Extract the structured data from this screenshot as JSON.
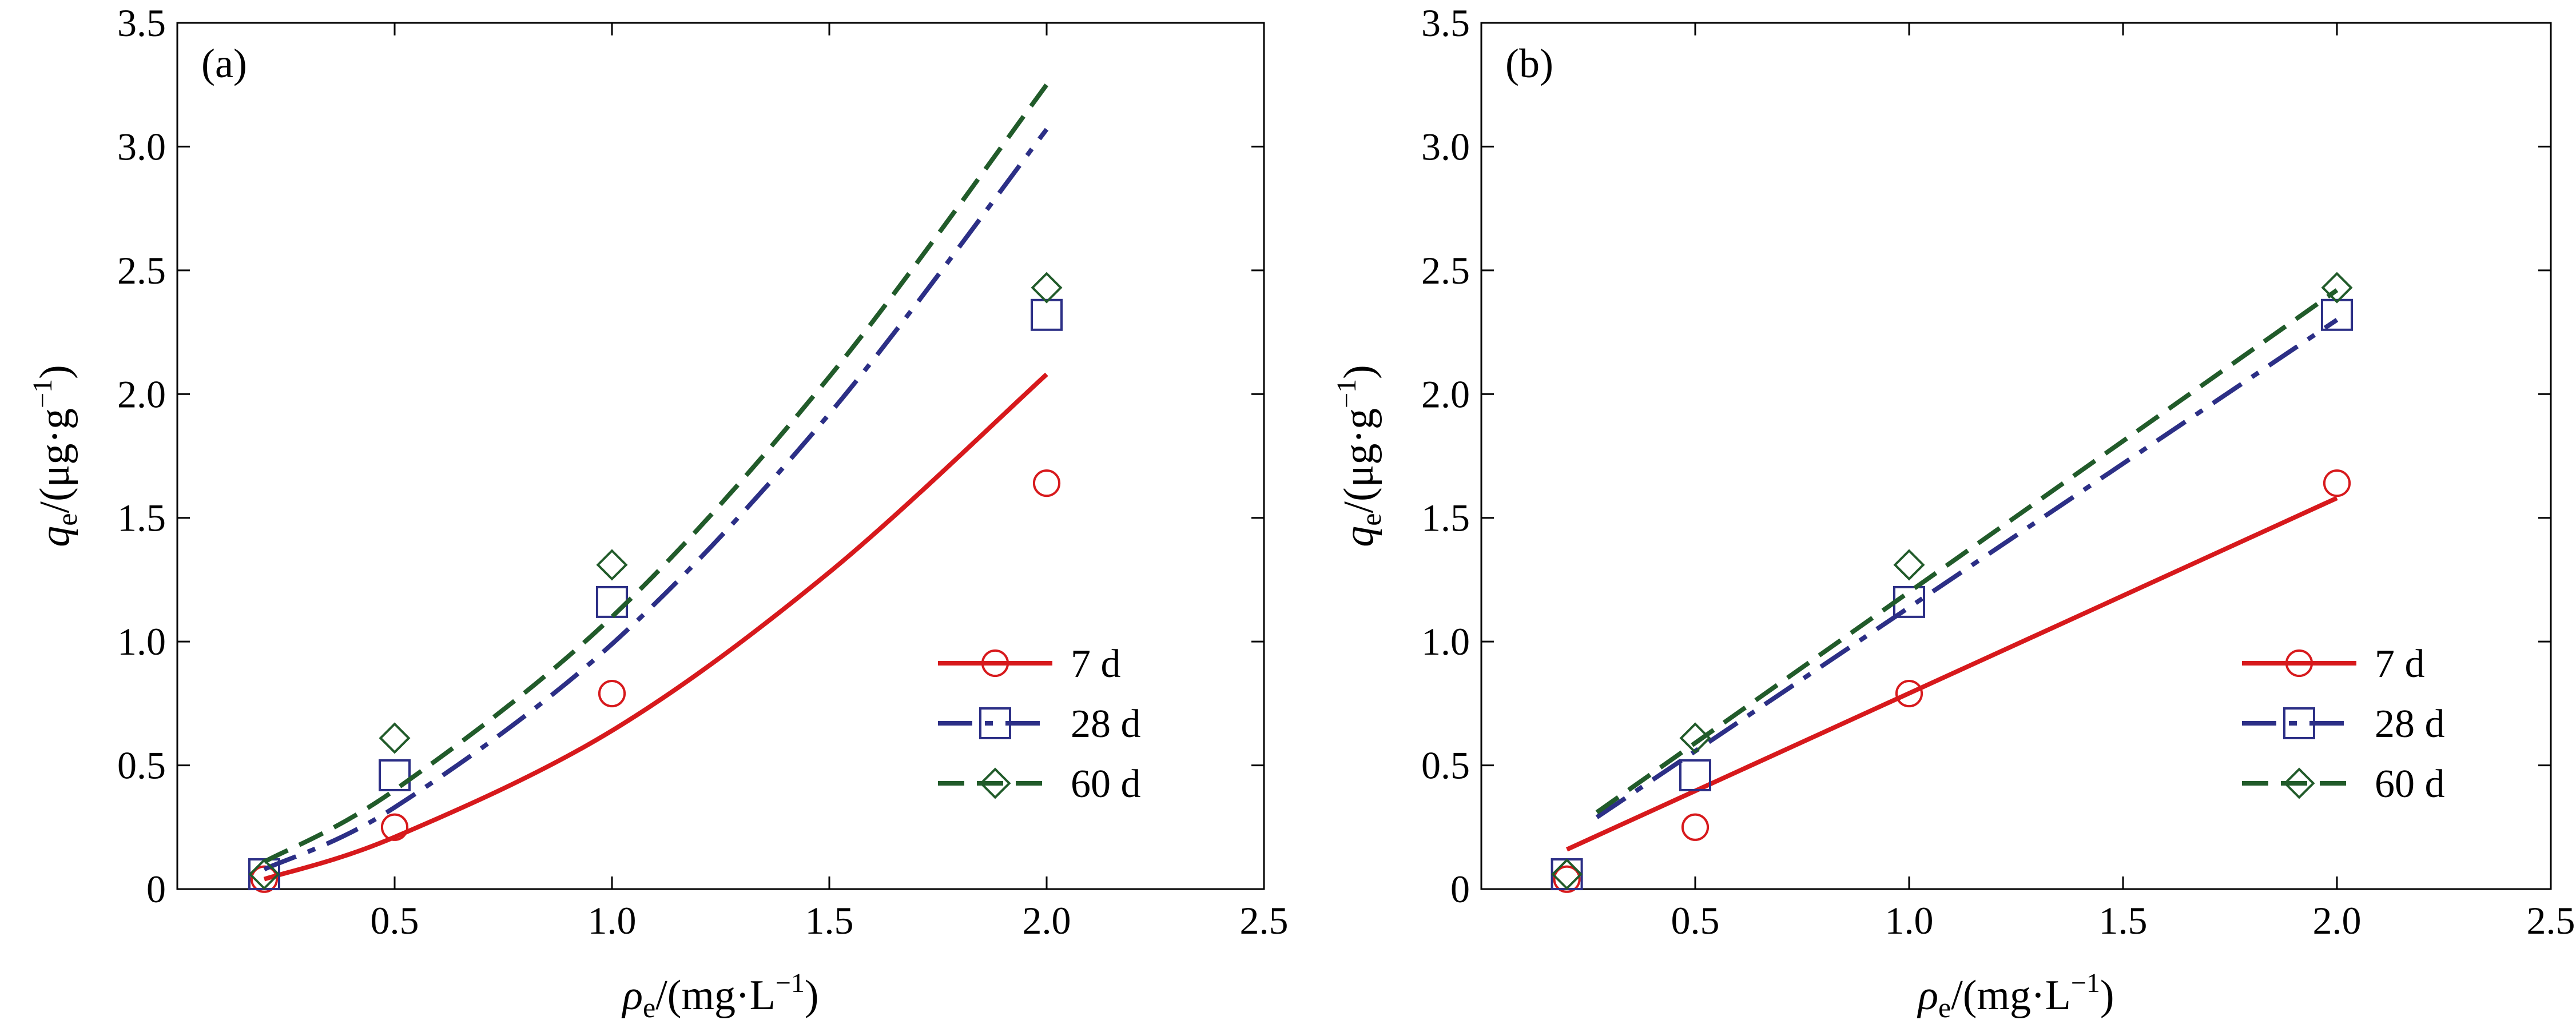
{
  "colors": {
    "s7": "#d7191c",
    "s28": "#2c2f86",
    "s60": "#215b2a",
    "axis": "#000000"
  },
  "chart_data": [
    {
      "type": "scatter",
      "panel_label": "(a)",
      "xlabel_main": "ρ",
      "xlabel_sub": "e",
      "xlabel_unit": "/(mg·L",
      "xlabel_exp": "−1",
      "xlabel_close": ")",
      "ylabel_main": "q",
      "ylabel_sub": "e",
      "ylabel_unit": "/(μg·g",
      "ylabel_exp": "−1",
      "ylabel_close": ")",
      "xlim": [
        0,
        2.5
      ],
      "ylim": [
        0,
        3.5
      ],
      "xticks": [
        "0.5",
        "1.0",
        "1.5",
        "2.0",
        "2.5"
      ],
      "yticks": [
        "0",
        "0.5",
        "1.0",
        "1.5",
        "2.0",
        "2.5",
        "3.0",
        "3.5"
      ],
      "series": [
        {
          "name": "7 d",
          "color_key": "s7",
          "marker": "circle",
          "line": "solid",
          "x": [
            0.2,
            0.5,
            1.0,
            2.0
          ],
          "y": [
            0.04,
            0.25,
            0.79,
            1.64
          ],
          "fit_x": [
            0.2,
            0.5,
            1.0,
            1.5,
            2.0
          ],
          "fit_y": [
            0.04,
            0.21,
            0.64,
            1.28,
            2.08
          ]
        },
        {
          "name": "28 d",
          "color_key": "s28",
          "marker": "square",
          "line": "dashdot",
          "x": [
            0.2,
            0.5,
            1.0,
            2.0
          ],
          "y": [
            0.06,
            0.46,
            1.16,
            2.32
          ],
          "fit_x": [
            0.2,
            0.5,
            1.0,
            1.5,
            2.0
          ],
          "fit_y": [
            0.08,
            0.33,
            0.99,
            1.92,
            3.07
          ]
        },
        {
          "name": "60 d",
          "color_key": "s60",
          "marker": "diamond",
          "line": "dashed",
          "x": [
            0.2,
            0.5,
            1.0,
            2.0
          ],
          "y": [
            0.06,
            0.61,
            1.31,
            2.43
          ],
          "fit_x": [
            0.2,
            0.5,
            1.0,
            1.5,
            2.0
          ],
          "fit_y": [
            0.11,
            0.4,
            1.1,
            2.07,
            3.25
          ]
        }
      ]
    },
    {
      "type": "scatter",
      "panel_label": "(b)",
      "xlabel_main": "ρ",
      "xlabel_sub": "e",
      "xlabel_unit": "/(mg·L",
      "xlabel_exp": "−1",
      "xlabel_close": ")",
      "ylabel_main": "q",
      "ylabel_sub": "e",
      "ylabel_unit": "/(μg·g",
      "ylabel_exp": "−1",
      "ylabel_close": ")",
      "xlim": [
        0,
        2.5
      ],
      "ylim": [
        0,
        3.5
      ],
      "xticks": [
        "0.5",
        "1.0",
        "1.5",
        "2.0",
        "2.5"
      ],
      "yticks": [
        "0",
        "0.5",
        "1.0",
        "1.5",
        "2.0",
        "2.5",
        "3.0",
        "3.5"
      ],
      "series": [
        {
          "name": "7 d",
          "color_key": "s7",
          "marker": "circle",
          "line": "solid",
          "x": [
            0.2,
            0.5,
            1.0,
            2.0
          ],
          "y": [
            0.04,
            0.25,
            0.79,
            1.64
          ],
          "fit_x": [
            0.2,
            2.0
          ],
          "fit_y": [
            0.16,
            1.58
          ]
        },
        {
          "name": "28 d",
          "color_key": "s28",
          "marker": "square",
          "line": "dashdot",
          "x": [
            0.2,
            0.5,
            1.0,
            2.0
          ],
          "y": [
            0.06,
            0.46,
            1.16,
            2.32
          ],
          "fit_x": [
            0.27,
            2.0
          ],
          "fit_y": [
            0.29,
            2.3
          ]
        },
        {
          "name": "60 d",
          "color_key": "s60",
          "marker": "diamond",
          "line": "dashed",
          "x": [
            0.2,
            0.5,
            1.0,
            2.0
          ],
          "y": [
            0.06,
            0.61,
            1.31,
            2.43
          ],
          "fit_x": [
            0.27,
            2.0
          ],
          "fit_y": [
            0.31,
            2.42
          ]
        }
      ]
    }
  ]
}
